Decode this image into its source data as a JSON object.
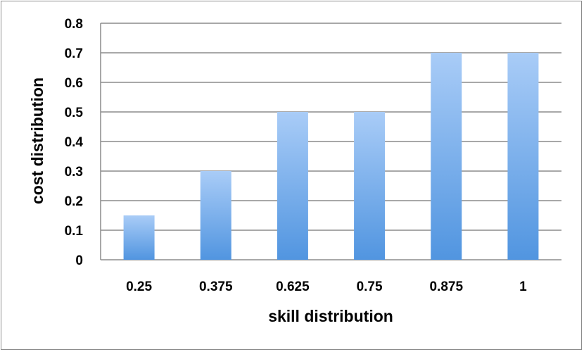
{
  "chart_data": {
    "type": "bar",
    "title": "",
    "xlabel": "skill distribution",
    "ylabel": "cost distribution",
    "categories": [
      "0.25",
      "0.375",
      "0.625",
      "0.75",
      "0.875",
      "1"
    ],
    "values": [
      0.15,
      0.3,
      0.5,
      0.5,
      0.7,
      0.7
    ],
    "ylim": [
      0,
      0.8
    ],
    "yticks": [
      "0",
      "0.1",
      "0.2",
      "0.3",
      "0.4",
      "0.5",
      "0.6",
      "0.7",
      "0.8"
    ],
    "grid": true,
    "legend": "none",
    "colors": {
      "bar_top": "#a9ccf7",
      "bar_bottom": "#5195e0",
      "grid": "#8c8c8c"
    }
  }
}
